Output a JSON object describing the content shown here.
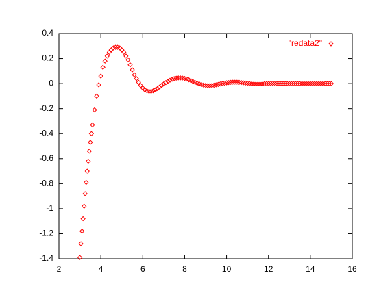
{
  "chart_data": {
    "type": "scatter",
    "x": [
      3,
      3.05,
      3.1,
      3.15,
      3.2,
      3.25,
      3.3,
      3.35,
      3.4,
      3.45,
      3.5,
      3.55,
      3.6,
      3.7,
      3.8,
      3.9,
      4.0,
      4.1,
      4.2,
      4.3,
      4.4,
      4.5,
      4.6,
      4.7,
      4.8,
      4.9,
      5.0,
      5.1,
      5.2,
      5.3,
      5.4,
      5.5,
      5.6,
      5.7,
      5.8,
      5.9,
      6.0,
      6.1,
      6.2,
      6.3,
      6.4,
      6.5,
      6.6,
      6.7,
      6.8,
      6.9,
      7.0,
      7.1,
      7.2,
      7.3,
      7.4,
      7.5,
      7.6,
      7.7,
      7.8,
      7.9,
      8.0,
      8.1,
      8.2,
      8.3,
      8.4,
      8.5,
      8.6,
      8.7,
      8.8,
      8.9,
      9.0,
      9.1,
      9.2,
      9.3,
      9.4,
      9.5,
      9.6,
      9.7,
      9.8,
      9.9,
      10.0,
      10.1,
      10.2,
      10.3,
      10.4,
      10.5,
      10.6,
      10.7,
      10.8,
      10.9,
      11.0,
      11.1,
      11.2,
      11.3,
      11.4,
      11.5,
      11.6,
      11.7,
      11.8,
      11.9,
      12.0,
      12.1,
      12.2,
      12.3,
      12.4,
      12.5,
      12.6,
      12.7,
      12.8,
      12.9,
      13.0,
      13.1,
      13.2,
      13.3,
      13.4,
      13.5,
      13.6,
      13.7,
      13.8,
      13.9,
      14.0,
      14.1,
      14.2,
      14.3,
      14.4,
      14.5,
      14.6,
      14.7,
      14.8,
      14.9,
      15.0
    ],
    "series": [
      {
        "name": "\"redata2\"",
        "color": "#ff0000",
        "marker": "diamond",
        "values": [
          -1.39,
          -1.28,
          -1.18,
          -1.08,
          -0.98,
          -0.88,
          -0.79,
          -0.7,
          -0.62,
          -0.54,
          -0.47,
          -0.4,
          -0.33,
          -0.21,
          -0.1,
          -0.01,
          0.06,
          0.13,
          0.18,
          0.22,
          0.25,
          0.27,
          0.285,
          0.29,
          0.29,
          0.285,
          0.27,
          0.25,
          0.22,
          0.19,
          0.15,
          0.11,
          0.07,
          0.04,
          0.01,
          -0.015,
          -0.035,
          -0.05,
          -0.058,
          -0.062,
          -0.062,
          -0.058,
          -0.05,
          -0.04,
          -0.028,
          -0.015,
          -0.003,
          0.008,
          0.018,
          0.027,
          0.034,
          0.04,
          0.043,
          0.045,
          0.045,
          0.044,
          0.041,
          0.036,
          0.03,
          0.023,
          0.016,
          0.009,
          0.003,
          -0.003,
          -0.008,
          -0.012,
          -0.014,
          -0.016,
          -0.016,
          -0.015,
          -0.013,
          -0.01,
          -0.007,
          -0.003,
          0,
          0.003,
          0.006,
          0.008,
          0.01,
          0.011,
          0.011,
          0.011,
          0.01,
          0.008,
          0.006,
          0.004,
          0.002,
          0,
          -0.002,
          -0.003,
          -0.004,
          -0.004,
          -0.004,
          -0.003,
          -0.002,
          -0.001,
          0,
          0.001,
          0.002,
          0.002,
          0.002,
          0.002,
          0.001,
          0,
          0,
          0,
          0,
          0,
          0,
          0,
          0,
          0,
          0,
          0,
          0,
          0,
          0,
          0,
          0,
          0,
          0,
          0,
          0,
          0,
          0,
          0,
          0
        ]
      }
    ],
    "xlim": [
      2,
      16
    ],
    "xticks": [
      2,
      4,
      6,
      8,
      10,
      12,
      14,
      16
    ],
    "ylim": [
      -1.4,
      0.4
    ],
    "yticks": [
      -1.4,
      -1.2,
      -1,
      -0.8,
      -0.6,
      -0.4,
      -0.2,
      0,
      0.2,
      0.4
    ],
    "legend": "top-right"
  }
}
